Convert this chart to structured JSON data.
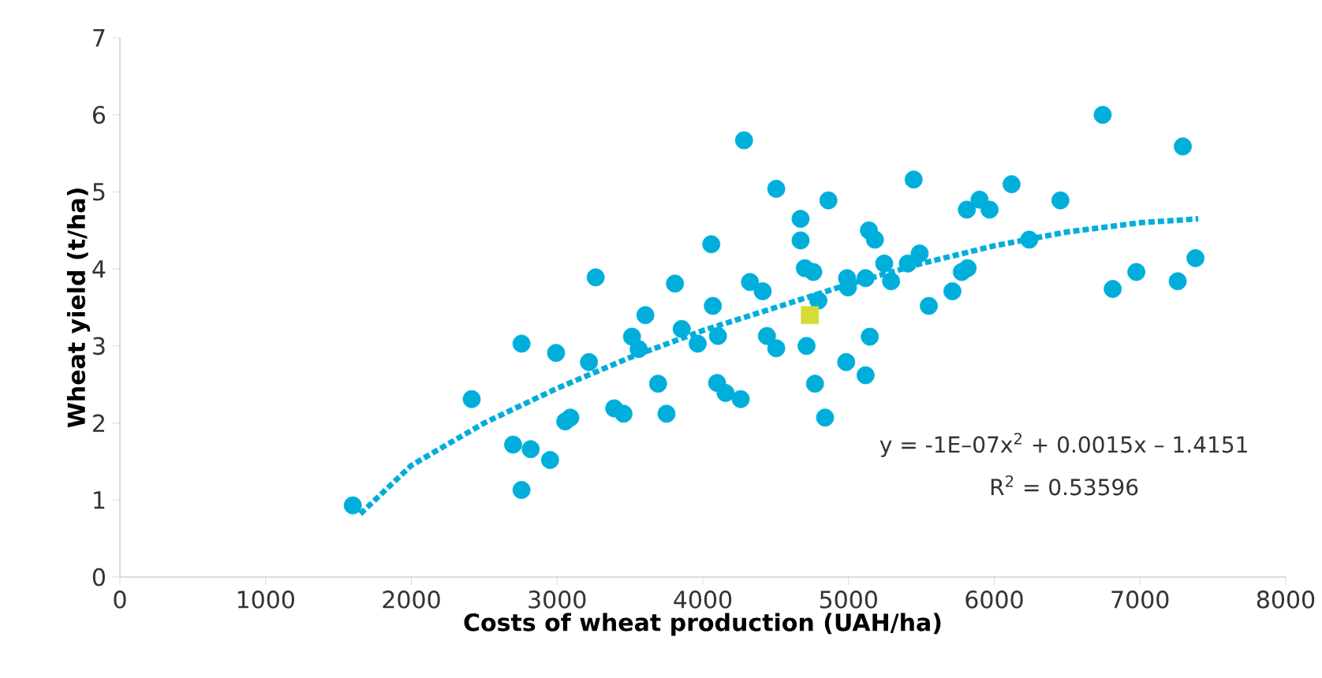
{
  "chart_data": {
    "type": "scatter",
    "xlabel": "Costs of wheat production (UAH/ha)",
    "ylabel": "Wheat yield (t/ha)",
    "xlim": [
      0,
      8000
    ],
    "xticks": [
      0,
      1000,
      2000,
      3000,
      4000,
      5000,
      6000,
      7000,
      8000
    ],
    "ylim": [
      0,
      7
    ],
    "yticks": [
      0,
      1,
      2,
      3,
      4,
      5,
      6,
      7
    ],
    "series": [
      {
        "color": "#00aedb",
        "marker": "circle",
        "x": [
          1598,
          2414,
          2698,
          2756,
          2756,
          2819,
          2952,
          2993,
          3056,
          3091,
          3219,
          3265,
          3392,
          3456,
          3514,
          3560,
          3606,
          3693,
          3751,
          3809,
          3855,
          3965,
          4058,
          4069,
          4098,
          4104,
          4156,
          4260,
          4283,
          4324,
          4411,
          4440,
          4504,
          4504,
          4671,
          4671,
          4700,
          4712,
          4758,
          4770,
          4793,
          4839,
          4862,
          4984,
          4990,
          4996,
          5117,
          5117,
          5140,
          5146,
          5181,
          5245,
          5292,
          5407,
          5447,
          5488,
          5551,
          5713,
          5777,
          5817,
          5812,
          5899,
          5968,
          6119,
          6240,
          6454,
          6744,
          6813,
          6975,
          7259,
          7294,
          7381
        ],
        "values": [
          0.93,
          2.31,
          1.72,
          3.03,
          1.13,
          1.66,
          1.52,
          2.91,
          2.02,
          2.07,
          2.79,
          3.89,
          2.19,
          2.12,
          3.12,
          2.96,
          3.4,
          2.51,
          2.12,
          3.81,
          3.22,
          3.03,
          4.32,
          3.52,
          2.52,
          3.13,
          2.39,
          2.31,
          5.67,
          3.83,
          3.71,
          3.13,
          5.04,
          2.97,
          4.65,
          4.37,
          4.01,
          3.0,
          3.96,
          2.51,
          3.59,
          2.07,
          4.89,
          2.79,
          3.88,
          3.76,
          3.88,
          2.62,
          4.5,
          3.12,
          4.38,
          4.07,
          3.84,
          4.07,
          5.16,
          4.2,
          3.52,
          3.71,
          3.96,
          4.01,
          4.77,
          4.9,
          4.77,
          5.1,
          4.38,
          4.89,
          6.0,
          3.74,
          3.96,
          3.84,
          5.59,
          4.14
        ]
      },
      {
        "color": "#d4dc36",
        "marker": "square",
        "x": [
          4735
        ],
        "values": [
          3.4
        ]
      },
      {
        "type": "line",
        "color": "#00aedb",
        "marker": "none",
        "line_style": "dotted",
        "x": [
          1650,
          2000,
          2500,
          3000,
          3500,
          4000,
          4500,
          5000,
          5500,
          6000,
          6500,
          7000,
          7400
        ],
        "values": [
          0.82,
          1.45,
          2.0,
          2.45,
          2.85,
          3.2,
          3.5,
          3.8,
          4.07,
          4.3,
          4.48,
          4.6,
          4.65
        ]
      }
    ],
    "annotations": [
      "y = -1E–07x$^{2}$ + 0.0015x – 1.4151",
      "R$^{2}$ = 0.53596"
    ]
  }
}
